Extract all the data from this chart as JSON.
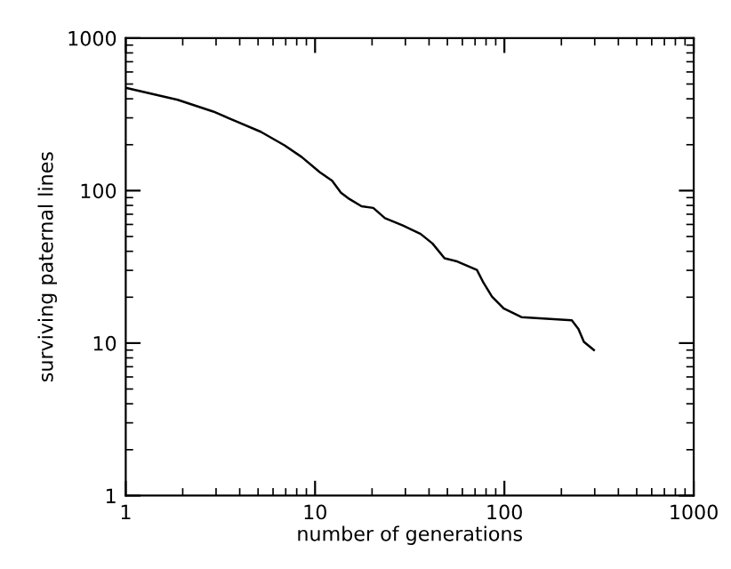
{
  "chart_data": {
    "type": "line",
    "xlabel": "number of generations",
    "ylabel": "surviving paternal lines",
    "log": "xy",
    "xlim": [
      1,
      1000
    ],
    "ylim": [
      1,
      1000
    ],
    "xticks": [
      1,
      10,
      100,
      1000
    ],
    "yticks": [
      1,
      10,
      100,
      1000
    ],
    "grid": false,
    "legend": false,
    "marker": "none",
    "line_style": "solid",
    "series": [
      {
        "color": "#000000",
        "x": [
          1,
          1.88,
          2.9,
          3.87,
          5.17,
          6.9,
          8.5,
          10.6,
          12.3,
          13.7,
          15.2,
          17.6,
          20.3,
          23.4,
          29.1,
          36.1,
          41.7,
          48.3,
          55.6,
          71.6,
          77,
          86,
          99.1,
          123,
          227,
          246,
          263,
          297
        ],
        "values": [
          472,
          394,
          330,
          283,
          243,
          198,
          166,
          132,
          116,
          97,
          88,
          79,
          77,
          66,
          59,
          52,
          45,
          36,
          34.5,
          30.2,
          25.3,
          20.2,
          16.9,
          14.8,
          14.1,
          12.4,
          10.2,
          9.0
        ]
      }
    ]
  }
}
